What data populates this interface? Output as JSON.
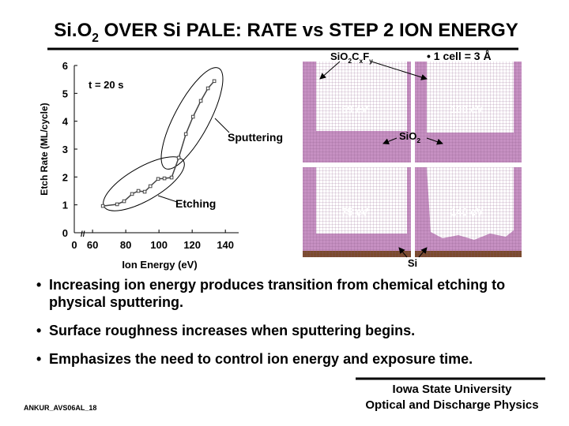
{
  "title": [
    "Si.O",
    "2",
    " OVER Si PALE: RATE vs STEP 2 ION ENERGY"
  ],
  "chart_data": {
    "type": "line",
    "color": "#444444",
    "x": [
      66.2,
      74.8,
      79.0,
      83.8,
      87.6,
      91.4,
      94.8,
      99.5,
      103.3,
      107.6,
      111.9,
      116.2,
      120.5,
      125.2,
      129.5,
      133.3
    ],
    "values": [
      0.96,
      1.02,
      1.13,
      1.39,
      1.5,
      1.47,
      1.67,
      1.93,
      1.95,
      1.98,
      2.69,
      3.54,
      4.16,
      4.73,
      5.18,
      5.44
    ],
    "xlabel": "Ion Energy (eV)",
    "ylabel": "Etch Rate (ML/cycle)",
    "xlim": [
      49,
      148
    ],
    "xticks": [
      60,
      80,
      100,
      120,
      140
    ],
    "x_origin_label": "0",
    "x_break": "//",
    "ylim": [
      0,
      6
    ],
    "yticks": [
      0,
      1,
      2,
      3,
      4,
      5,
      6
    ],
    "annotations": [
      "t = 20 s",
      "Sputtering",
      "Etching"
    ]
  },
  "panels": {
    "top_label": [
      "SiO",
      "2",
      "C",
      "x",
      "F",
      "y"
    ],
    "scale_note": "• 1 cell = 3 Å",
    "energies": [
      "69 eV",
      "100 eV",
      "75 eV",
      "140 eV"
    ],
    "middle_label": [
      "SiO",
      "2"
    ],
    "bottom_label": "Si"
  },
  "bullets": [
    "Increasing ion energy produces transition from chemical etching to physical sputtering.",
    "Surface roughness increases when sputtering begins.",
    "Emphasizes the need to control ion energy and exposure time."
  ],
  "footer": {
    "code": "ANKUR_AVS06AL_18",
    "university": "Iowa State University",
    "group": "Optical and Discharge Physics"
  }
}
